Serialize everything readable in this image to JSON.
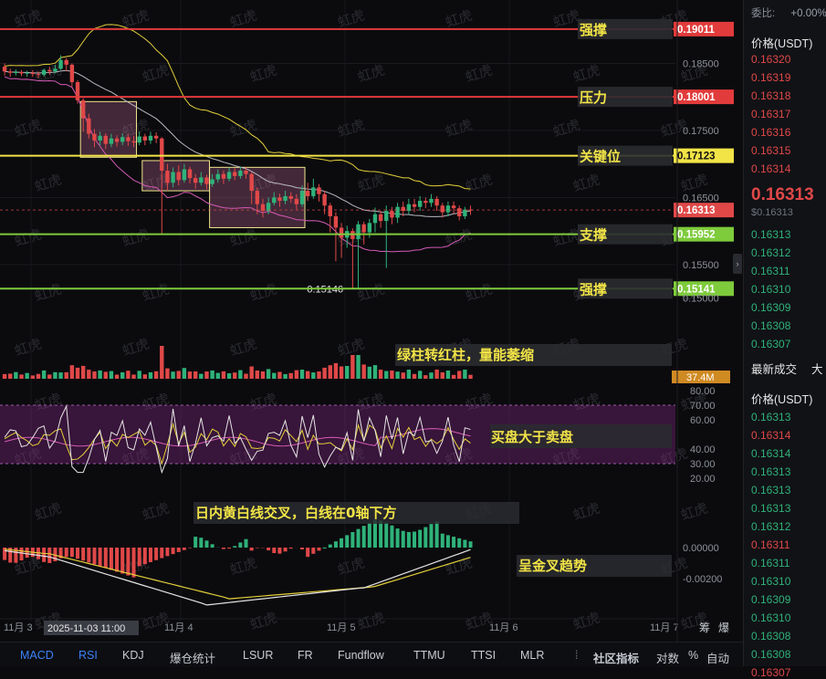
{
  "chart_data": {
    "type": "candlestick",
    "price_ticks": [
      "0.18500",
      "0.17500",
      "0.16500",
      "0.15500",
      "0.15000"
    ],
    "price_range": [
      0.1475,
      0.192
    ],
    "x_ticks": [
      "11月 3",
      "11月 4",
      "11月 5",
      "11月 6",
      "11月 7"
    ],
    "cursor_time": "2025-11-03 11:00",
    "current_price": "0.16313",
    "low_label": "0.15146",
    "levels": [
      {
        "label": "强撑",
        "value": "0.19011",
        "price": 0.19011,
        "color": "#e23b3b"
      },
      {
        "label": "压力",
        "value": "0.18001",
        "price": 0.18001,
        "color": "#e23b3b"
      },
      {
        "label": "关键位",
        "value": "0.17123",
        "price": 0.17123,
        "color": "#f2e447"
      },
      {
        "label": "支撑",
        "value": "0.15952",
        "price": 0.15952,
        "color": "#7ecb3b"
      },
      {
        "label": "强撑",
        "value": "0.15141",
        "price": 0.15141,
        "color": "#7ecb3b"
      }
    ],
    "candles": [
      [
        0.1845,
        0.1838,
        0.185,
        0.1832
      ],
      [
        0.1838,
        0.1836,
        0.1842,
        0.183
      ],
      [
        0.1836,
        0.1837,
        0.1841,
        0.1832
      ],
      [
        0.1837,
        0.1835,
        0.184,
        0.1831
      ],
      [
        0.1835,
        0.1836,
        0.1839,
        0.183
      ],
      [
        0.1836,
        0.1834,
        0.184,
        0.183
      ],
      [
        0.1834,
        0.1833,
        0.1838,
        0.1828
      ],
      [
        0.1833,
        0.184,
        0.1842,
        0.183
      ],
      [
        0.184,
        0.1838,
        0.1845,
        0.1833
      ],
      [
        0.1838,
        0.1842,
        0.1848,
        0.1835
      ],
      [
        0.1842,
        0.1855,
        0.1862,
        0.184
      ],
      [
        0.1855,
        0.1848,
        0.1858,
        0.1838
      ],
      [
        0.1848,
        0.1822,
        0.185,
        0.1815
      ],
      [
        0.1822,
        0.1795,
        0.1825,
        0.179
      ],
      [
        0.1795,
        0.1768,
        0.1798,
        0.1748
      ],
      [
        0.1768,
        0.1745,
        0.1775,
        0.1738
      ],
      [
        0.1745,
        0.1735,
        0.1752,
        0.1725
      ],
      [
        0.1735,
        0.1742,
        0.1748,
        0.1728
      ],
      [
        0.1742,
        0.173,
        0.1746,
        0.1722
      ],
      [
        0.173,
        0.1738,
        0.1745,
        0.1725
      ],
      [
        0.1738,
        0.1733,
        0.1743,
        0.1726
      ],
      [
        0.1733,
        0.174,
        0.1746,
        0.1728
      ],
      [
        0.174,
        0.1734,
        0.1744,
        0.1727
      ],
      [
        0.1734,
        0.1732,
        0.1742,
        0.1725
      ],
      [
        0.1732,
        0.1741,
        0.1748,
        0.1728
      ],
      [
        0.1741,
        0.1735,
        0.1745,
        0.1728
      ],
      [
        0.1735,
        0.1742,
        0.1748,
        0.173
      ],
      [
        0.1742,
        0.1738,
        0.1747,
        0.1731
      ],
      [
        0.1738,
        0.169,
        0.174,
        0.1595
      ],
      [
        0.169,
        0.1672,
        0.17,
        0.166
      ],
      [
        0.1672,
        0.1688,
        0.1695,
        0.1665
      ],
      [
        0.1688,
        0.1676,
        0.1698,
        0.1668
      ],
      [
        0.1676,
        0.1692,
        0.17,
        0.1672
      ],
      [
        0.1692,
        0.1679,
        0.1696,
        0.1671
      ],
      [
        0.1679,
        0.1672,
        0.1685,
        0.1663
      ],
      [
        0.1672,
        0.168,
        0.1688,
        0.1668
      ],
      [
        0.168,
        0.167,
        0.1684,
        0.1662
      ],
      [
        0.167,
        0.1677,
        0.1685,
        0.1666
      ],
      [
        0.1677,
        0.1685,
        0.1692,
        0.1672
      ],
      [
        0.1685,
        0.1678,
        0.169,
        0.167
      ],
      [
        0.1678,
        0.1688,
        0.1695,
        0.1674
      ],
      [
        0.1688,
        0.1682,
        0.1694,
        0.1676
      ],
      [
        0.1682,
        0.169,
        0.1696,
        0.1678
      ],
      [
        0.169,
        0.1685,
        0.1695,
        0.1678
      ],
      [
        0.1685,
        0.166,
        0.1688,
        0.164
      ],
      [
        0.166,
        0.164,
        0.1665,
        0.1625
      ],
      [
        0.164,
        0.163,
        0.1648,
        0.162
      ],
      [
        0.163,
        0.1642,
        0.165,
        0.1625
      ],
      [
        0.1642,
        0.165,
        0.1658,
        0.1638
      ],
      [
        0.165,
        0.1645,
        0.1656,
        0.1636
      ],
      [
        0.1645,
        0.1652,
        0.166,
        0.164
      ],
      [
        0.1652,
        0.1648,
        0.1658,
        0.1642
      ],
      [
        0.1648,
        0.164,
        0.1655,
        0.1632
      ],
      [
        0.164,
        0.166,
        0.1668,
        0.1636
      ],
      [
        0.166,
        0.1652,
        0.1672,
        0.1645
      ],
      [
        0.1652,
        0.1665,
        0.1678,
        0.1648
      ],
      [
        0.1665,
        0.1655,
        0.167,
        0.1644
      ],
      [
        0.1655,
        0.1638,
        0.166,
        0.1625
      ],
      [
        0.1638,
        0.1622,
        0.1642,
        0.1598
      ],
      [
        0.1622,
        0.1605,
        0.1628,
        0.1555
      ],
      [
        0.1605,
        0.159,
        0.1612,
        0.156
      ],
      [
        0.159,
        0.16,
        0.1608,
        0.1575
      ],
      [
        0.16,
        0.1588,
        0.1604,
        0.1514
      ],
      [
        0.1588,
        0.161,
        0.1615,
        0.1515
      ],
      [
        0.161,
        0.1598,
        0.1614,
        0.158
      ],
      [
        0.1598,
        0.1612,
        0.1618,
        0.159
      ],
      [
        0.1612,
        0.1625,
        0.1635,
        0.1598
      ],
      [
        0.1625,
        0.1615,
        0.163,
        0.1605
      ],
      [
        0.1615,
        0.163,
        0.1638,
        0.1545
      ],
      [
        0.163,
        0.162,
        0.1636,
        0.161
      ],
      [
        0.162,
        0.1636,
        0.1642,
        0.1612
      ],
      [
        0.1636,
        0.163,
        0.1644,
        0.1622
      ],
      [
        0.163,
        0.164,
        0.1648,
        0.1625
      ],
      [
        0.164,
        0.1636,
        0.1648,
        0.1628
      ],
      [
        0.1636,
        0.1645,
        0.1652,
        0.163
      ],
      [
        0.1645,
        0.1642,
        0.165,
        0.1634
      ],
      [
        0.1642,
        0.1648,
        0.1655,
        0.1636
      ],
      [
        0.1648,
        0.1638,
        0.1652,
        0.163
      ],
      [
        0.1638,
        0.1628,
        0.1642,
        0.162
      ],
      [
        0.1628,
        0.1638,
        0.1644,
        0.1622
      ],
      [
        0.1638,
        0.1634,
        0.1644,
        0.1626
      ],
      [
        0.1634,
        0.1622,
        0.1638,
        0.1616
      ],
      [
        0.1622,
        0.1632,
        0.1636,
        0.1618
      ],
      [
        0.1632,
        0.1631,
        0.1638,
        0.1624
      ]
    ],
    "boxes": [
      {
        "from": 14,
        "to": 23,
        "top": 0.1793,
        "bottom": 0.171
      },
      {
        "from": 25,
        "to": 36,
        "top": 0.1705,
        "bottom": 0.166
      },
      {
        "from": 37,
        "to": 53,
        "top": 0.1695,
        "bottom": 0.1605
      }
    ],
    "volume_label": "37.4M",
    "rsi_ticks": [
      "80.00",
      "70.00",
      "60.00",
      "40.00",
      "30.00",
      "20.00"
    ],
    "rsi_range": [
      15,
      85
    ],
    "macd_ticks": [
      "0.00000",
      "-0.00200"
    ],
    "annotations": {
      "volume": "绿柱转红柱，量能萎缩",
      "rsi": "买盘大于卖盘",
      "macd_top": "日内黄白线交叉，白线在0轴下方",
      "macd_bottom": "呈金叉趋势"
    },
    "watermark": "虹虎"
  },
  "orderbook": {
    "change_label": "委比:",
    "change_value": "+0.00%",
    "price_header": "价格(USDT)",
    "asks": [
      "0.16320",
      "0.16319",
      "0.16318",
      "0.16317",
      "0.16316",
      "0.16315",
      "0.16314"
    ],
    "mid_price": "0.16313",
    "mid_sub": "$0.16313",
    "bids": [
      "0.16313",
      "0.16312",
      "0.16311",
      "0.16310",
      "0.16309",
      "0.16308",
      "0.16307"
    ],
    "trades_title": "最新成交",
    "trades_cut": "大",
    "trades_header": "价格(USDT)",
    "trades": [
      {
        "p": "0.16313",
        "s": "bid"
      },
      {
        "p": "0.16314",
        "s": "ask"
      },
      {
        "p": "0.16314",
        "s": "bid"
      },
      {
        "p": "0.16313",
        "s": "bid"
      },
      {
        "p": "0.16313",
        "s": "bid"
      },
      {
        "p": "0.16313",
        "s": "bid"
      },
      {
        "p": "0.16312",
        "s": "bid"
      },
      {
        "p": "0.16311",
        "s": "ask"
      },
      {
        "p": "0.16311",
        "s": "bid"
      },
      {
        "p": "0.16310",
        "s": "bid"
      },
      {
        "p": "0.16309",
        "s": "bid"
      },
      {
        "p": "0.16310",
        "s": "bid"
      },
      {
        "p": "0.16308",
        "s": "bid"
      },
      {
        "p": "0.16308",
        "s": "bid"
      },
      {
        "p": "0.16307",
        "s": "ask"
      }
    ]
  },
  "bottom_tabs": [
    "MACD",
    "RSI",
    "KDJ",
    "爆仓统计",
    "LSUR",
    "FR",
    "Fundflow",
    "TTMU",
    "TTSI",
    "MLR"
  ],
  "bottom_right": [
    "社区指标",
    "对数",
    "%",
    "自动"
  ],
  "axis_extra": [
    "筹",
    "爆"
  ],
  "colors": {
    "up": "#2fb27a",
    "down": "#e04848",
    "accent": "#3b82f6"
  }
}
